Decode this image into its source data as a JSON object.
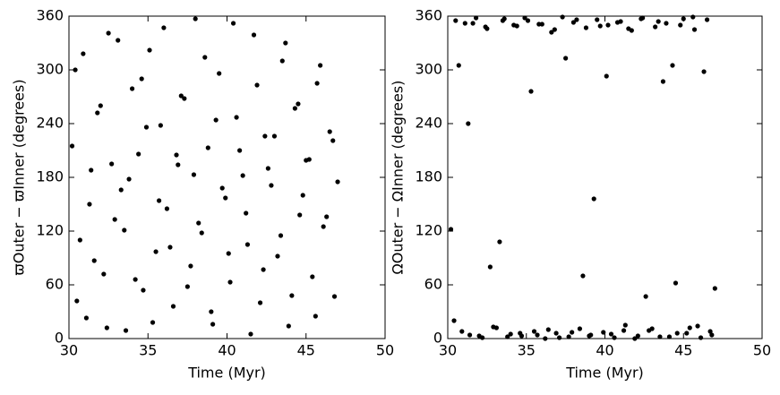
{
  "chart_data": [
    {
      "type": "scatter",
      "x_label": "Time (Myr)",
      "y_label": "ϖOuter − ϖInner (degrees)",
      "color": "#000000",
      "xlim": [
        30,
        50
      ],
      "xticks": [
        30,
        35,
        40,
        45,
        50
      ],
      "ylim": [
        0,
        360
      ],
      "yticks": [
        0,
        60,
        120,
        180,
        240,
        300,
        360
      ],
      "x": [
        30.2,
        30.5,
        30.9,
        31.3,
        31.6,
        32.0,
        32.4,
        32.7,
        33.1,
        33.5,
        33.8,
        34.2,
        34.6,
        34.9,
        35.3,
        35.7,
        36.0,
        36.4,
        36.8,
        37.1,
        37.5,
        37.9,
        38.2,
        38.6,
        39.0,
        39.3,
        39.7,
        40.1,
        40.4,
        40.8,
        41.2,
        41.5,
        41.9,
        42.3,
        42.6,
        43.0,
        43.4,
        43.7,
        44.1,
        44.5,
        44.8,
        45.2,
        45.6,
        45.9,
        46.3,
        46.7,
        47.0,
        30.4,
        30.7,
        31.1,
        31.4,
        31.8,
        32.2,
        32.5,
        32.9,
        33.3,
        33.6,
        34.0,
        34.4,
        34.7,
        35.1,
        35.5,
        35.8,
        36.2,
        36.6,
        36.9,
        37.3,
        37.7,
        38.0,
        38.4,
        38.8,
        39.1,
        39.5,
        39.9,
        40.2,
        40.6,
        41.0,
        41.3,
        41.7,
        42.1,
        42.4,
        42.8,
        43.2,
        43.5,
        43.9,
        44.3,
        44.6,
        45.0,
        45.4,
        45.7,
        46.1,
        46.5,
        46.8
      ],
      "values": [
        215,
        42,
        318,
        150,
        87,
        260,
        12,
        195,
        333,
        121,
        178,
        66,
        290,
        236,
        18,
        154,
        347,
        102,
        205,
        271,
        58,
        183,
        129,
        314,
        30,
        244,
        168,
        95,
        352,
        210,
        140,
        5,
        283,
        77,
        190,
        226,
        115,
        330,
        48,
        262,
        160,
        200,
        25,
        305,
        136,
        221,
        175,
        300,
        110,
        23,
        188,
        252,
        72,
        341,
        133,
        166,
        9,
        279,
        206,
        54,
        322,
        97,
        238,
        145,
        36,
        194,
        268,
        81,
        357,
        118,
        213,
        16,
        296,
        157,
        63,
        247,
        182,
        105,
        339,
        40,
        226,
        171,
        92,
        310,
        14,
        257,
        138,
        199,
        69,
        285,
        125,
        231,
        47
      ]
    },
    {
      "type": "scatter",
      "x_label": "Time (Myr)",
      "y_label": "ΩOuter − ΩInner (degrees)",
      "color": "#000000",
      "xlim": [
        30,
        50
      ],
      "xticks": [
        30,
        35,
        40,
        45,
        50
      ],
      "ylim": [
        0,
        360
      ],
      "yticks": [
        0,
        60,
        120,
        180,
        240,
        300,
        360
      ],
      "x": [
        30.2,
        30.5,
        30.9,
        31.3,
        31.6,
        32.0,
        32.4,
        32.7,
        33.1,
        33.5,
        33.8,
        34.2,
        34.6,
        34.9,
        35.3,
        35.7,
        36.0,
        36.4,
        36.8,
        37.1,
        37.5,
        37.9,
        38.2,
        38.6,
        39.0,
        39.3,
        39.7,
        40.1,
        40.4,
        40.8,
        41.2,
        41.5,
        41.9,
        42.3,
        42.6,
        43.0,
        43.4,
        43.7,
        44.1,
        44.5,
        44.8,
        45.2,
        45.6,
        45.9,
        46.3,
        46.7,
        47.0,
        30.4,
        30.7,
        31.1,
        31.4,
        31.8,
        32.2,
        32.5,
        32.9,
        33.3,
        33.6,
        34.0,
        34.4,
        34.7,
        35.1,
        35.5,
        35.8,
        36.2,
        36.6,
        36.9,
        37.3,
        37.7,
        38.0,
        38.4,
        38.8,
        39.1,
        39.5,
        39.9,
        40.2,
        40.6,
        41.0,
        41.3,
        41.7,
        42.1,
        42.4,
        42.8,
        43.2,
        43.5,
        43.9,
        44.3,
        44.6,
        45.0,
        45.4,
        45.7,
        46.1,
        46.5,
        46.8
      ],
      "values": [
        122,
        355,
        8,
        240,
        352,
        3,
        348,
        80,
        12,
        355,
        2,
        350,
        6,
        358,
        276,
        4,
        351,
        10,
        345,
        1,
        313,
        7,
        356,
        70,
        3,
        156,
        349,
        293,
        5,
        353,
        9,
        346,
        0,
        357,
        47,
        11,
        354,
        287,
        2,
        62,
        350,
        6,
        359,
        14,
        298,
        8,
        56,
        20,
        305,
        352,
        4,
        358,
        1,
        346,
        13,
        108,
        357,
        5,
        349,
        3,
        355,
        8,
        351,
        0,
        342,
        6,
        359,
        2,
        353,
        11,
        347,
        4,
        356,
        7,
        350,
        1,
        354,
        15,
        344,
        3,
        358,
        9,
        348,
        2,
        352,
        305,
        6,
        357,
        12,
        345,
        1,
        356,
        4
      ]
    }
  ]
}
